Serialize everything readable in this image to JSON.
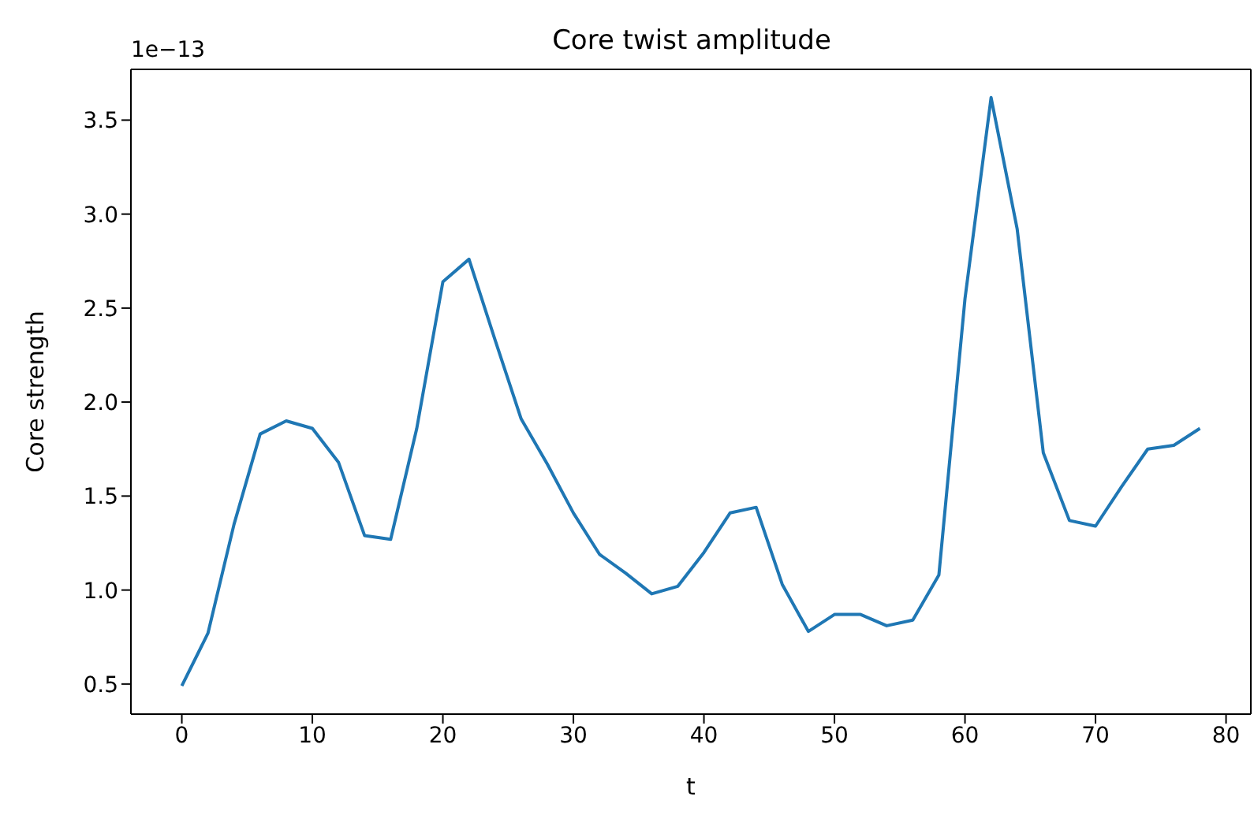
{
  "chart_data": {
    "type": "line",
    "title": "Core twist amplitude",
    "xlabel": "t",
    "ylabel": "Core strength",
    "annotations": [
      "1e−13"
    ],
    "x": [
      0,
      2,
      4,
      6,
      8,
      10,
      12,
      14,
      16,
      18,
      20,
      22,
      24,
      26,
      28,
      30,
      32,
      34,
      36,
      38,
      40,
      42,
      44,
      46,
      48,
      50,
      52,
      54,
      56,
      58,
      60,
      62,
      64,
      66,
      68,
      70,
      72,
      74,
      76,
      78
    ],
    "series": [
      {
        "color": "#1f77b4",
        "values": [
          0.49,
          0.77,
          1.35,
          1.83,
          1.9,
          1.86,
          1.68,
          1.29,
          1.27,
          1.86,
          2.64,
          2.76,
          2.33,
          1.91,
          1.67,
          1.41,
          1.19,
          1.09,
          0.98,
          1.02,
          1.2,
          1.41,
          1.44,
          1.03,
          0.78,
          0.87,
          0.87,
          0.81,
          0.84,
          1.08,
          2.55,
          3.62,
          2.92,
          1.73,
          1.37,
          1.34,
          1.55,
          1.75,
          1.77,
          1.86
        ]
      }
    ],
    "xlim": [
      -3.9,
      81.9
    ],
    "xticks": [
      0,
      10,
      20,
      30,
      40,
      50,
      60,
      70,
      80
    ],
    "ylim": [
      0.34,
      3.77
    ],
    "yticks": [
      0.5,
      {
        "value": 1,
        "label": "1.0"
      },
      1.5,
      {
        "value": 2,
        "label": "2.0"
      },
      2.5,
      {
        "value": 3,
        "label": "3.0"
      },
      3.5
    ],
    "grid": false,
    "legend": false,
    "marker": "none",
    "line_style": "solid"
  }
}
